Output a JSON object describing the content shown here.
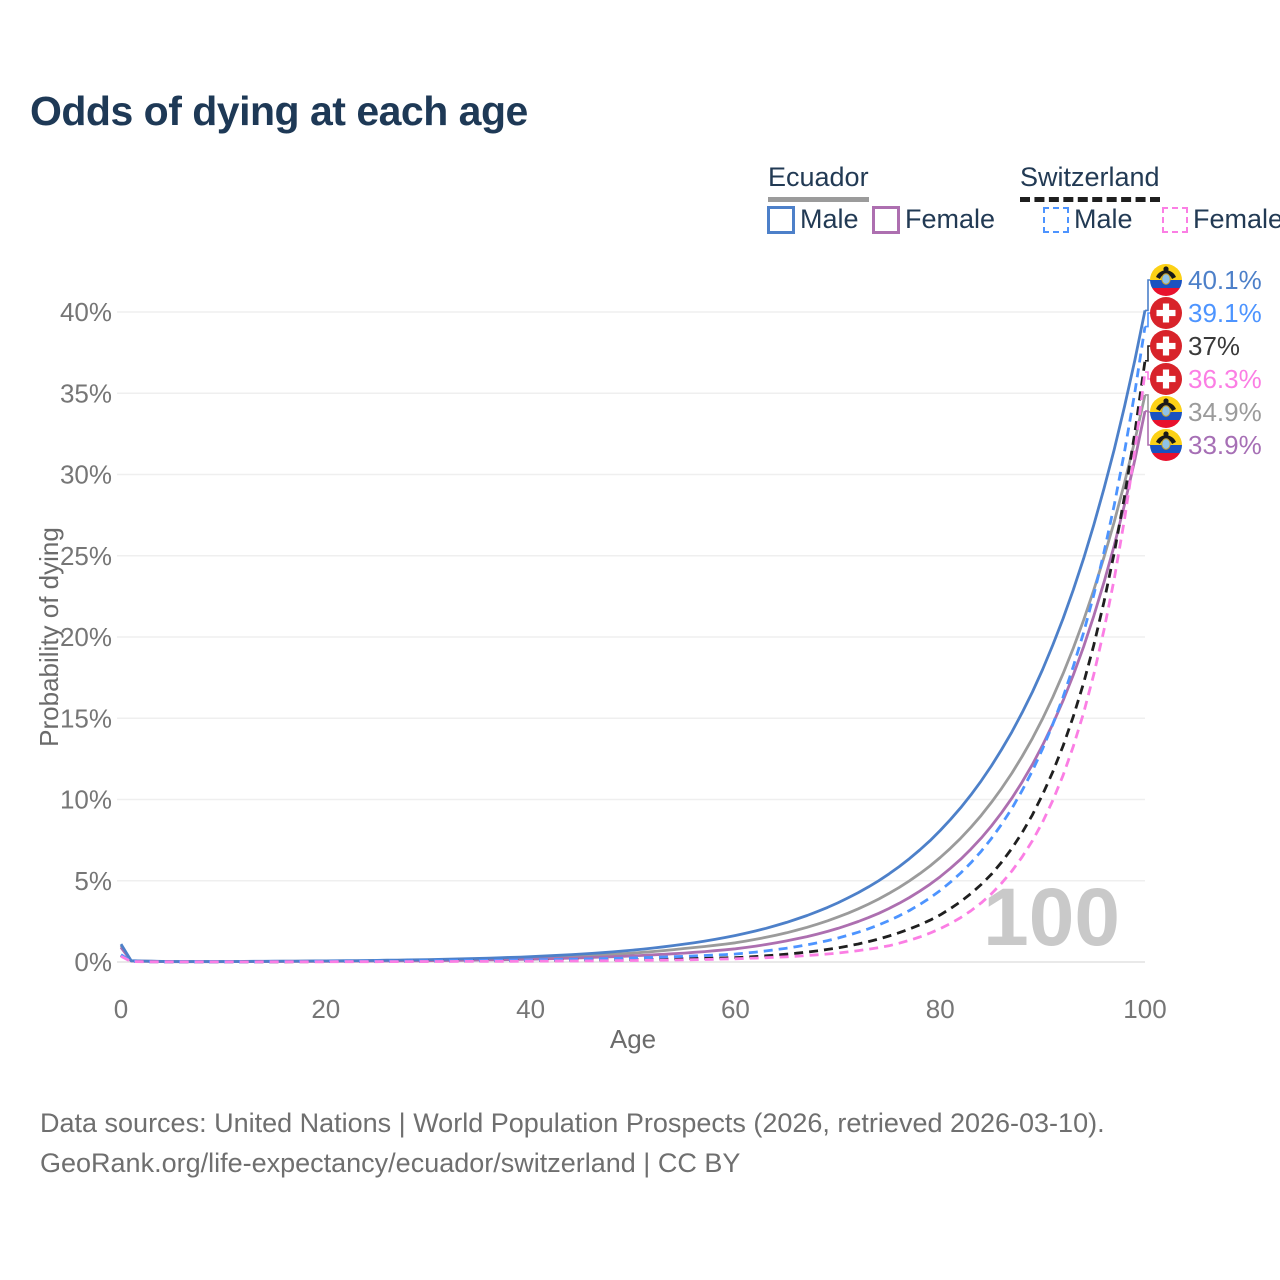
{
  "title": "Odds of dying at each age",
  "legend": {
    "groups": [
      {
        "label": "Ecuador",
        "line_style": "solid",
        "line_color": "#9b9b9b",
        "items": [
          {
            "label": "Male",
            "series": 2
          },
          {
            "label": "Female",
            "series": 1
          }
        ]
      },
      {
        "label": "Switzerland",
        "line_style": "dashed",
        "line_color": "#1f1f1f",
        "items": [
          {
            "label": "Male",
            "series": 4
          },
          {
            "label": "Female",
            "series": 5
          }
        ]
      }
    ]
  },
  "chart_data": {
    "type": "line",
    "title": "Odds of dying at each age",
    "xlabel": "Age",
    "ylabel": "Probability of dying",
    "xlim": [
      0,
      100
    ],
    "ylim_pct": [
      0,
      42
    ],
    "xticks": [
      0,
      20,
      40,
      60,
      80,
      100
    ],
    "yticks_pct": [
      0,
      5,
      10,
      15,
      20,
      25,
      30,
      35,
      40
    ],
    "grid": true,
    "legend_position": "top-right",
    "watermark": "100",
    "ages": [
      0,
      1,
      5,
      10,
      15,
      20,
      25,
      30,
      35,
      40,
      45,
      50,
      55,
      60,
      65,
      70,
      75,
      80,
      85,
      90,
      95,
      100
    ],
    "series": [
      {
        "name": "Ecuador Average",
        "flag": "ecuador",
        "color": "#9b9b9b",
        "label_color": "#9b9b9b",
        "dashed": false,
        "end_label": "34.9%",
        "values_pct": [
          1.0,
          0.07,
          0.025,
          0.025,
          0.04,
          0.055,
          0.08,
          0.11,
          0.17,
          0.25,
          0.37,
          0.55,
          0.83,
          1.18,
          1.8,
          2.76,
          4.22,
          6.43,
          9.82,
          14.97,
          22.9,
          34.9
        ]
      },
      {
        "name": "Ecuador Female",
        "flag": "ecuador",
        "color": "#ad6fb0",
        "label_color": "#a66fb5",
        "dashed": false,
        "end_label": "33.9%",
        "values_pct": [
          0.9,
          0.06,
          0.02,
          0.02,
          0.03,
          0.045,
          0.06,
          0.08,
          0.12,
          0.17,
          0.26,
          0.38,
          0.55,
          0.81,
          1.3,
          2.07,
          3.29,
          5.25,
          8.37,
          13.34,
          21.3,
          33.9
        ]
      },
      {
        "name": "Ecuador Male",
        "flag": "ecuador",
        "color": "#4d80c9",
        "label_color": "#4d80c9",
        "dashed": false,
        "end_label": "40.1%",
        "values_pct": [
          1.1,
          0.08,
          0.03,
          0.03,
          0.05,
          0.07,
          0.1,
          0.15,
          0.22,
          0.33,
          0.49,
          0.73,
          1.1,
          1.63,
          2.44,
          3.64,
          5.42,
          8.09,
          12.07,
          18.0,
          26.9,
          40.1
        ]
      },
      {
        "name": "Switzerland Average",
        "flag": "switzerland",
        "color": "#1f1f1f",
        "label_color": "#3a3a3a",
        "dashed": true,
        "end_label": "37%",
        "values_pct": [
          0.4,
          0.03,
          0.008,
          0.008,
          0.012,
          0.025,
          0.035,
          0.05,
          0.065,
          0.09,
          0.12,
          0.15,
          0.2,
          0.27,
          0.48,
          0.87,
          1.6,
          2.9,
          5.4,
          10.3,
          19.5,
          37.0
        ]
      },
      {
        "name": "Switzerland Male",
        "flag": "switzerland",
        "color": "#4d94ff",
        "label_color": "#4d94ff",
        "dashed": true,
        "end_label": "39.1%",
        "values_pct": [
          0.45,
          0.035,
          0.01,
          0.01,
          0.02,
          0.04,
          0.05,
          0.07,
          0.09,
          0.13,
          0.18,
          0.25,
          0.35,
          0.49,
          0.85,
          1.47,
          2.55,
          4.4,
          7.6,
          13.12,
          22.6,
          39.1
        ]
      },
      {
        "name": "Switzerland Female",
        "flag": "switzerland",
        "color": "#fb7ee4",
        "label_color": "#fb7ee4",
        "dashed": true,
        "end_label": "36.3%",
        "values_pct": [
          0.35,
          0.025,
          0.007,
          0.007,
          0.01,
          0.015,
          0.02,
          0.03,
          0.04,
          0.05,
          0.065,
          0.09,
          0.13,
          0.2,
          0.32,
          0.55,
          1.0,
          2.05,
          4.2,
          8.61,
          17.7,
          36.3
        ]
      }
    ],
    "flag_colors": {
      "ecuador_yellow": "#fcd116",
      "ecuador_blue": "#1a52c0",
      "ecuador_red": "#e8112d",
      "swiss_red": "#d8232a",
      "swiss_cross": "#ffffff"
    }
  },
  "footer": {
    "line1": "Data sources: United Nations | World Population Prospects (2026, retrieved 2026-03-10).",
    "line2": "GeoRank.org/life-expectancy/ecuador/switzerland | CC BY"
  }
}
